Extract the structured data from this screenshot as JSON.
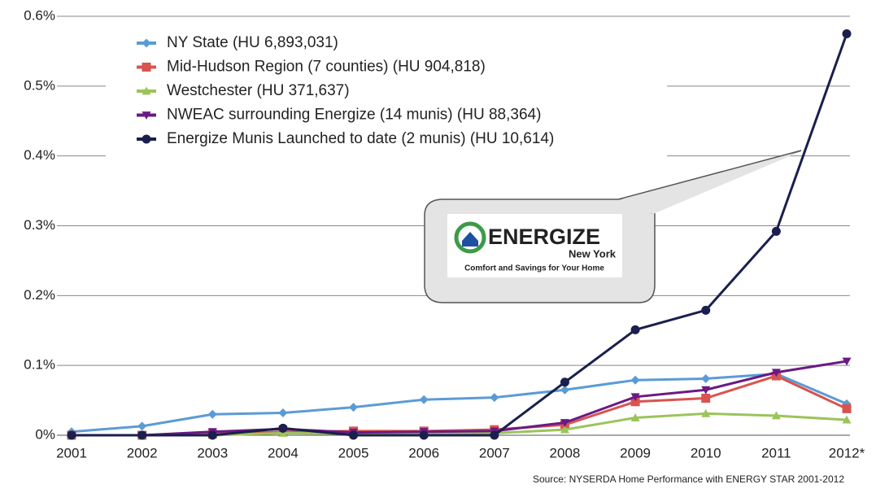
{
  "chart_data": {
    "type": "line",
    "categories": [
      "2001",
      "2002",
      "2003",
      "2004",
      "2005",
      "2006",
      "2007",
      "2008",
      "2009",
      "2010",
      "2011",
      "2012*"
    ],
    "series": [
      {
        "name": "NY State (HU 6,893,031)",
        "color": "#5b9bd5",
        "marker": "diamond",
        "values": [
          0.005,
          0.013,
          0.03,
          0.032,
          0.04,
          0.051,
          0.054,
          0.065,
          0.079,
          0.081,
          0.088,
          0.045
        ]
      },
      {
        "name": "Mid-Hudson Region (7 counties) (HU 904,818)",
        "color": "#d9534f",
        "marker": "square",
        "values": [
          0,
          0,
          0.002,
          0.005,
          0.006,
          0.006,
          0.008,
          0.015,
          0.048,
          0.053,
          0.085,
          0.038
        ]
      },
      {
        "name": "Westchester (HU 371,637)",
        "color": "#9bc45a",
        "marker": "triangle",
        "values": [
          0,
          0,
          0,
          0.003,
          0.002,
          0.002,
          0.003,
          0.008,
          0.025,
          0.031,
          0.028,
          0.022
        ]
      },
      {
        "name": "NWEAC surrounding Energize (14 munis) (HU 88,364)",
        "color": "#6a1a84",
        "marker": "triangle-down",
        "values": [
          0,
          0,
          0.005,
          0.009,
          0.004,
          0.005,
          0.006,
          0.018,
          0.055,
          0.065,
          0.09,
          0.106
        ]
      },
      {
        "name": "Energize Munis Launched to date (2 munis) (HU 10,614)",
        "color": "#1a1f4d",
        "marker": "circle",
        "values": [
          0,
          0,
          0,
          0.01,
          0,
          0,
          0,
          0.076,
          0.151,
          0.179,
          0.292,
          0.575
        ]
      }
    ],
    "ylim": [
      0,
      0.6
    ],
    "yticks": [
      {
        "value": 0,
        "label": "0%"
      },
      {
        "value": 0.1,
        "label": "0.1%"
      },
      {
        "value": 0.2,
        "label": "0.2%"
      },
      {
        "value": 0.3,
        "label": "0.3%"
      },
      {
        "value": 0.4,
        "label": "0.4%"
      },
      {
        "value": 0.5,
        "label": "0.5%"
      },
      {
        "value": 0.6,
        "label": "0.6%"
      }
    ],
    "grid": true,
    "legend": "upper left",
    "callout": {
      "title": "ENERGIZE",
      "subtitle": "New York",
      "tagline": "Comfort and Savings for Your Home"
    },
    "source": "Source: NYSERDA Home Performance with ENERGY STAR 2001-2012"
  }
}
